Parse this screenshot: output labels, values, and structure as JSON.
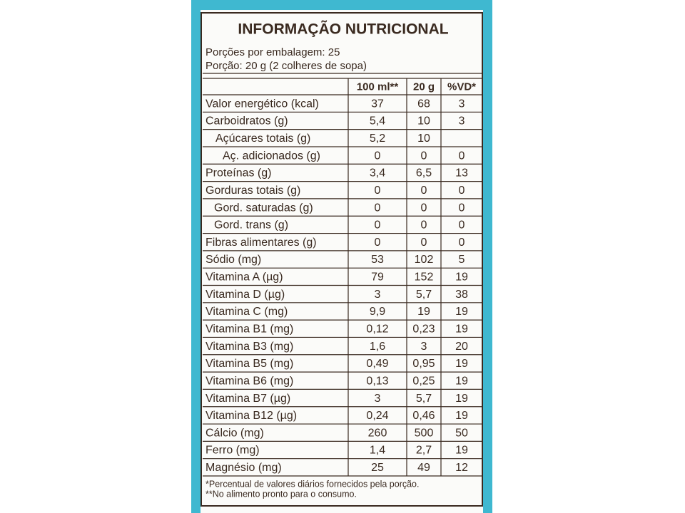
{
  "title": "INFORMAÇÃO NUTRICIONAL",
  "servings_per_package": "Porções por embalagem: 25",
  "serving_size": "Porção: 20 g (2 colheres de sopa)",
  "table": {
    "header": [
      "100 ml**",
      "20 g",
      "%VD*"
    ],
    "rows": [
      [
        "Valor energético (kcal)",
        "37",
        "68",
        "3"
      ],
      [
        "Carboidratos (g)",
        "5,4",
        "10",
        "3"
      ],
      [
        "Açúcares totais (g)",
        "5,2",
        "10",
        null
      ],
      [
        "Aç. adicionados (g)",
        "0",
        "0",
        "0"
      ],
      [
        "Proteínas (g)",
        "3,4",
        "6,5",
        "13"
      ],
      [
        "Gorduras totais (g)",
        "0",
        "0",
        "0"
      ],
      [
        "Gord. saturadas (g)",
        "0",
        "0",
        "0"
      ],
      [
        "Gord. trans (g)",
        "0",
        "0",
        "0"
      ],
      [
        "Fibras alimentares (g)",
        "0",
        "0",
        "0"
      ],
      [
        "Sódio (mg)",
        "53",
        "102",
        "5"
      ],
      [
        "Vitamina A (µg)",
        "79",
        "152",
        "19"
      ],
      [
        "Vitamina D (µg)",
        "3",
        "5,7",
        "38"
      ],
      [
        "Vitamina C (mg)",
        "9,9",
        "19",
        "19"
      ],
      [
        "Vitamina B1 (mg)",
        "0,12",
        "0,23",
        "19"
      ],
      [
        "Vitamina B3 (mg)",
        "1,6",
        "3",
        "20"
      ],
      [
        "Vitamina B5 (mg)",
        "0,49",
        "0,95",
        "19"
      ],
      [
        "Vitamina B6 (mg)",
        "0,13",
        "0,25",
        "19"
      ],
      [
        "Vitamina B7 (µg)",
        "3",
        "5,7",
        "19"
      ],
      [
        "Vitamina B12 (µg)",
        "0,24",
        "0,46",
        "19"
      ],
      [
        "Cálcio (mg)",
        "260",
        "500",
        "50"
      ],
      [
        "Ferro (mg)",
        "1,4",
        "2,7",
        "19"
      ],
      [
        "Magnésio (mg)",
        "25",
        "49",
        "12"
      ]
    ]
  },
  "footnotes": [
    "*Percentual de valores diários fornecidos pela porção.",
    "**No alimento pronto para o consumo."
  ]
}
